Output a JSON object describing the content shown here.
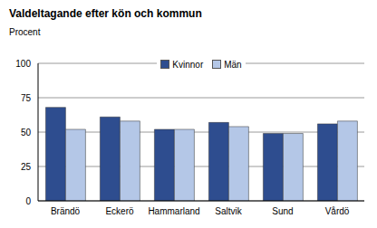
{
  "chart_data": {
    "type": "bar",
    "title": "Valdeltagande efter kön och kommun",
    "ylabel": "Procent",
    "categories": [
      "Brändö",
      "Eckerö",
      "Hammarland",
      "Saltvik",
      "Sund",
      "Vårdö"
    ],
    "series": [
      {
        "name": "Kvinnor",
        "color": "#2E4D8F",
        "values": [
          68,
          61,
          52,
          57,
          49,
          56
        ]
      },
      {
        "name": "Män",
        "color": "#B4C7E7",
        "values": [
          52,
          58,
          52,
          54,
          49,
          58
        ]
      }
    ],
    "ylim": [
      0,
      100
    ],
    "yticks": [
      0,
      25,
      50,
      75,
      100
    ],
    "grid": true,
    "legend": "top"
  }
}
